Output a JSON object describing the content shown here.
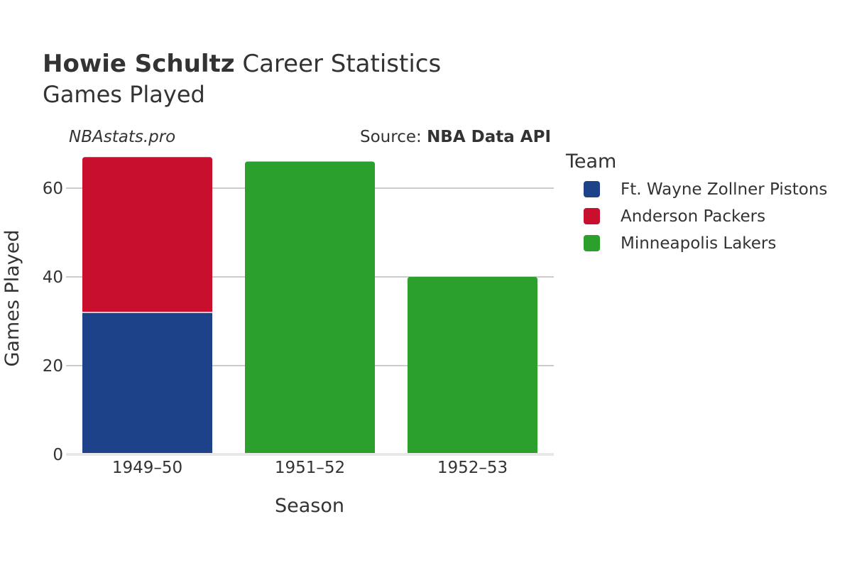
{
  "header": {
    "player_name": "Howie Schultz",
    "title_rest": " Career Statistics",
    "subtitle": "Games Played"
  },
  "watermark": "NBAstats.pro",
  "source": {
    "prefix": "Source: ",
    "name": "NBA Data API"
  },
  "legend": {
    "title": "Team"
  },
  "colors": {
    "Ft. Wayne Zollner Pistons": "#1d428a",
    "Anderson Packers": "#c8102e",
    "Minneapolis Lakers": "#2ca02c"
  },
  "chart_data": {
    "type": "bar",
    "stacked": true,
    "title": "Howie Schultz Career Statistics",
    "subtitle": "Games Played",
    "xlabel": "Season",
    "ylabel": "Games Played",
    "categories": [
      "1949–50",
      "1951–52",
      "1952–53"
    ],
    "ylim": [
      0,
      70
    ],
    "yticks": [
      0,
      20,
      40,
      60
    ],
    "grid": true,
    "legend_position": "right",
    "series": [
      {
        "name": "Ft. Wayne Zollner Pistons",
        "values": [
          32,
          0,
          0
        ]
      },
      {
        "name": "Anderson Packers",
        "values": [
          35,
          0,
          0
        ]
      },
      {
        "name": "Minneapolis Lakers",
        "values": [
          0,
          66,
          40
        ]
      }
    ]
  }
}
